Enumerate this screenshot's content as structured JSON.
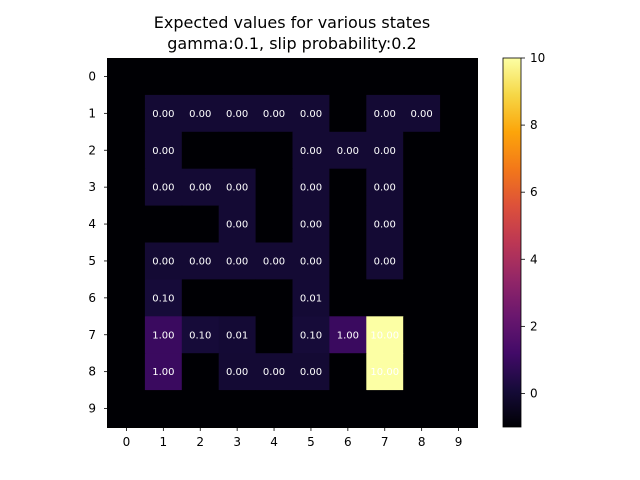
{
  "chart_data": {
    "type": "heatmap",
    "title": "Expected values for various states\ngamma:0.1, slip probability:0.2",
    "title_lines": [
      "Expected values for various states",
      "gamma:0.1, slip probability:0.2"
    ],
    "xlabel": "",
    "ylabel": "",
    "x_ticks": [
      "0",
      "1",
      "2",
      "3",
      "4",
      "5",
      "6",
      "7",
      "8",
      "9"
    ],
    "y_ticks": [
      "0",
      "1",
      "2",
      "3",
      "4",
      "5",
      "6",
      "7",
      "8",
      "9"
    ],
    "colormap": "inferno",
    "vmin": -1,
    "vmax": 10,
    "colorbar_ticks": [
      "0",
      "2",
      "4",
      "6",
      "8",
      "10"
    ],
    "colorbar_tick_values": [
      0,
      2,
      4,
      6,
      8,
      10
    ],
    "wall_value": -1,
    "grid": false,
    "values": [
      [
        -1,
        -1,
        -1,
        -1,
        -1,
        -1,
        -1,
        -1,
        -1,
        -1
      ],
      [
        -1,
        0,
        0,
        0,
        0,
        0,
        -1,
        0,
        0,
        -1
      ],
      [
        -1,
        0,
        -1,
        -1,
        -1,
        0,
        0,
        0,
        -1,
        -1
      ],
      [
        -1,
        0,
        0,
        0,
        -1,
        0,
        -1,
        0,
        -1,
        -1
      ],
      [
        -1,
        -1,
        -1,
        0,
        -1,
        0,
        -1,
        0,
        -1,
        -1
      ],
      [
        -1,
        0,
        0,
        0,
        0,
        0,
        -1,
        0,
        -1,
        -1
      ],
      [
        -1,
        0.1,
        -1,
        -1,
        -1,
        0.01,
        -1,
        -1,
        -1,
        -1
      ],
      [
        -1,
        1,
        0.1,
        0.01,
        -1,
        0.1,
        1,
        10,
        -1,
        -1
      ],
      [
        -1,
        1,
        -1,
        0,
        0,
        0,
        -1,
        10,
        -1,
        -1
      ],
      [
        -1,
        -1,
        -1,
        -1,
        -1,
        -1,
        -1,
        -1,
        -1,
        -1
      ]
    ],
    "labels": [
      [
        "",
        "",
        "",
        "",
        "",
        "",
        "",
        "",
        "",
        ""
      ],
      [
        "",
        "0.00",
        "0.00",
        "0.00",
        "0.00",
        "0.00",
        "",
        "0.00",
        "0.00",
        ""
      ],
      [
        "",
        "0.00",
        "",
        "",
        "",
        "0.00",
        "0.00",
        "0.00",
        "",
        ""
      ],
      [
        "",
        "0.00",
        "0.00",
        "0.00",
        "",
        "0.00",
        "",
        "0.00",
        "",
        ""
      ],
      [
        "",
        "",
        "",
        "0.00",
        "",
        "0.00",
        "",
        "0.00",
        "",
        ""
      ],
      [
        "",
        "0.00",
        "0.00",
        "0.00",
        "0.00",
        "0.00",
        "",
        "0.00",
        "",
        ""
      ],
      [
        "",
        "0.10",
        "",
        "",
        "",
        "0.01",
        "",
        "",
        "",
        ""
      ],
      [
        "",
        "1.00",
        "0.10",
        "0.01",
        "",
        "0.10",
        "1.00",
        "10.00",
        "",
        ""
      ],
      [
        "",
        "1.00",
        "",
        "0.00",
        "0.00",
        "0.00",
        "",
        "10.00",
        "",
        ""
      ],
      [
        "",
        "",
        "",
        "",
        "",
        "",
        "",
        "",
        "",
        ""
      ]
    ]
  }
}
